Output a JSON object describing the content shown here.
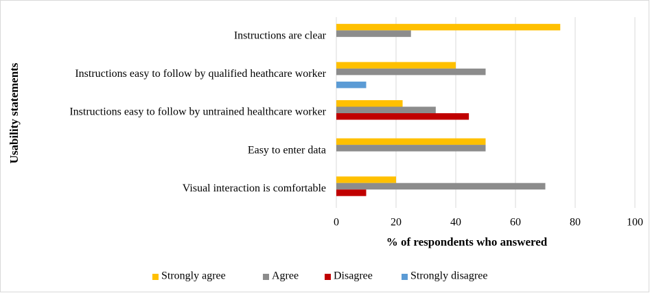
{
  "chart_data": {
    "type": "bar",
    "orientation": "horizontal",
    "xlabel": "% of respondents who answered",
    "ylabel": "Usability statements",
    "categories": [
      "Instructions are clear",
      "Instructions easy to follow by qualified heathcare worker",
      "Instructions easy to follow by untrained healthcare worker",
      "Easy to enter data",
      "Visual interaction is comfortable"
    ],
    "series": [
      {
        "name": "Strongly agree",
        "color": "#ffc000",
        "values": [
          75,
          40,
          22.2,
          50,
          20
        ]
      },
      {
        "name": "Agree",
        "color": "#8c8c8c",
        "values": [
          25,
          50,
          33.3,
          50,
          70
        ]
      },
      {
        "name": "Disagree",
        "color": "#c00000",
        "values": [
          0,
          0,
          44.4,
          0,
          10
        ]
      },
      {
        "name": "Strongly disagree",
        "color": "#5b9bd5",
        "values": [
          0,
          10,
          0,
          0,
          0
        ]
      }
    ],
    "xlim": [
      0,
      100
    ],
    "xticks": [
      0,
      20,
      40,
      60,
      80,
      100
    ],
    "grid": true,
    "legend": "bottom"
  }
}
